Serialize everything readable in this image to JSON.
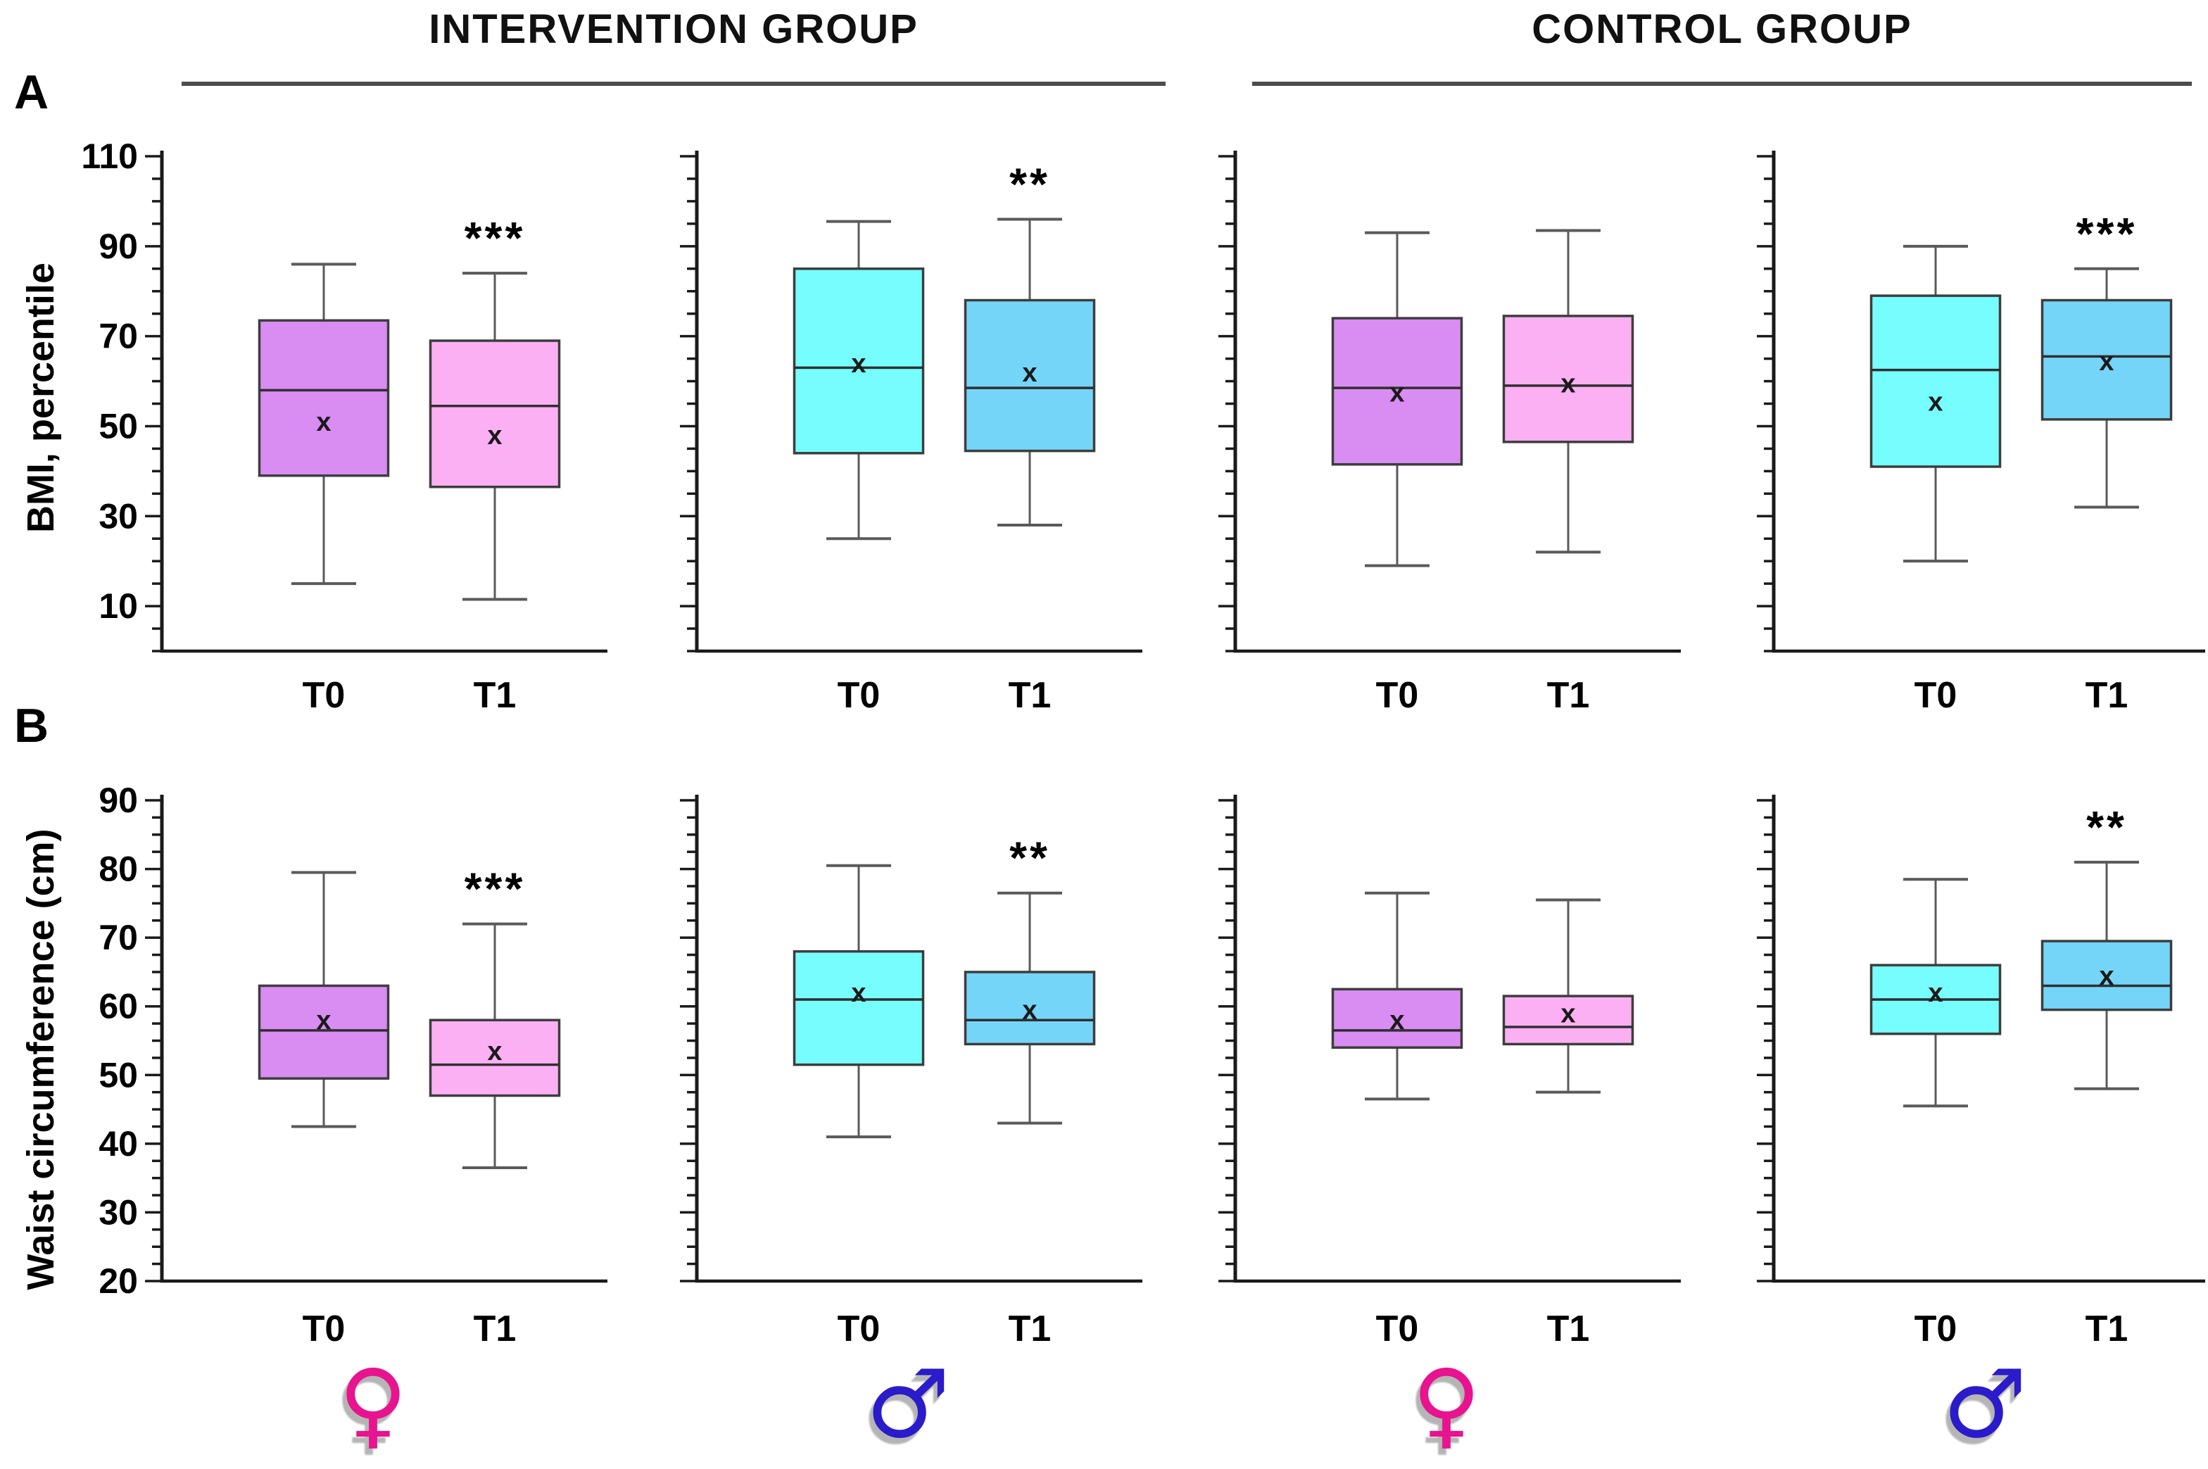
{
  "page": {
    "headers": {
      "intervention": "INTERVENTION GROUP",
      "control": "CONTROL  GROUP"
    },
    "panels": {
      "a_label": "A",
      "b_label": "B"
    },
    "y_axis_labels": {
      "row_a": "BMI, percentile",
      "row_b": "Waist circumference (cm)"
    },
    "x_categories": [
      "T0",
      "T1"
    ],
    "sex_symbols": [
      {
        "name": "female-symbol",
        "glyph": "♀",
        "color": "#e8138e"
      },
      {
        "name": "male-symbol",
        "glyph": "♂",
        "color": "#2a1bcb"
      },
      {
        "name": "female-symbol",
        "glyph": "♀",
        "color": "#e8138e"
      },
      {
        "name": "male-symbol",
        "glyph": "♂",
        "color": "#2a1bcb"
      }
    ]
  },
  "style": {
    "colors": {
      "female_t0_fill": "#d98cf2",
      "female_t1_fill": "#fbb0f4",
      "male_t0_fill": "#76fdfd",
      "male_t1_fill": "#74d5f8",
      "box_stroke": "#3d3d3d",
      "median_line": "#2f2f2f",
      "whisker": "#5a5a5a",
      "axis": "#1a1a1a",
      "text": "#000000"
    }
  },
  "chart_data": [
    {
      "id": "bmi-intervention-female",
      "type": "boxplot",
      "panel": "A",
      "group": "INTERVENTION GROUP",
      "sex": "female",
      "ylabel": "BMI, percentile",
      "ylim": [
        0,
        110
      ],
      "ytick_values": [
        10,
        30,
        50,
        70,
        90,
        110
      ],
      "minor_tick_step": 5,
      "show_ytick_labels": true,
      "categories": [
        "T0",
        "T1"
      ],
      "boxes": [
        {
          "label": "T0",
          "min": 15,
          "q1": 39,
          "median": 58,
          "mean": 51,
          "q3": 73.5,
          "max": 86,
          "fill": "#d98cf2",
          "significance": ""
        },
        {
          "label": "T1",
          "min": 11.5,
          "q1": 36.5,
          "median": 54.5,
          "mean": 48,
          "q3": 69,
          "max": 84,
          "fill": "#fbb0f4",
          "significance": "***"
        }
      ]
    },
    {
      "id": "bmi-intervention-male",
      "type": "boxplot",
      "panel": "A",
      "group": "INTERVENTION GROUP",
      "sex": "male",
      "ylabel": "BMI, percentile",
      "ylim": [
        0,
        110
      ],
      "ytick_values": [
        10,
        30,
        50,
        70,
        90,
        110
      ],
      "minor_tick_step": 5,
      "show_ytick_labels": false,
      "categories": [
        "T0",
        "T1"
      ],
      "boxes": [
        {
          "label": "T0",
          "min": 25,
          "q1": 44,
          "median": 63,
          "mean": 64,
          "q3": 85,
          "max": 95.5,
          "fill": "#76fdfd",
          "significance": ""
        },
        {
          "label": "T1",
          "min": 28,
          "q1": 44.5,
          "median": 58.5,
          "mean": 62,
          "q3": 78,
          "max": 96,
          "fill": "#74d5f8",
          "significance": "**"
        }
      ]
    },
    {
      "id": "bmi-control-female",
      "type": "boxplot",
      "panel": "A",
      "group": "CONTROL GROUP",
      "sex": "female",
      "ylabel": "BMI, percentile",
      "ylim": [
        0,
        110
      ],
      "ytick_values": [
        10,
        30,
        50,
        70,
        90,
        110
      ],
      "minor_tick_step": 5,
      "show_ytick_labels": false,
      "categories": [
        "T0",
        "T1"
      ],
      "boxes": [
        {
          "label": "T0",
          "min": 19,
          "q1": 41.5,
          "median": 58.5,
          "mean": 57.5,
          "q3": 74,
          "max": 93,
          "fill": "#d98cf2",
          "significance": ""
        },
        {
          "label": "T1",
          "min": 22,
          "q1": 46.5,
          "median": 59,
          "mean": 59.5,
          "q3": 74.5,
          "max": 93.5,
          "fill": "#fbb0f4",
          "significance": ""
        }
      ]
    },
    {
      "id": "bmi-control-male",
      "type": "boxplot",
      "panel": "A",
      "group": "CONTROL GROUP",
      "sex": "male",
      "ylabel": "BMI, percentile",
      "ylim": [
        0,
        110
      ],
      "ytick_values": [
        10,
        30,
        50,
        70,
        90,
        110
      ],
      "minor_tick_step": 5,
      "show_ytick_labels": false,
      "categories": [
        "T0",
        "T1"
      ],
      "boxes": [
        {
          "label": "T0",
          "min": 20,
          "q1": 41,
          "median": 62.5,
          "mean": 55.5,
          "q3": 79,
          "max": 90,
          "fill": "#76fdfd",
          "significance": ""
        },
        {
          "label": "T1",
          "min": 32,
          "q1": 51.5,
          "median": 65.5,
          "mean": 64.5,
          "q3": 78,
          "max": 85,
          "fill": "#74d5f8",
          "significance": "***"
        }
      ]
    },
    {
      "id": "waist-intervention-female",
      "type": "boxplot",
      "panel": "B",
      "group": "INTERVENTION GROUP",
      "sex": "female",
      "ylabel": "Waist circumference (cm)",
      "ylim": [
        20,
        90
      ],
      "ytick_values": [
        20,
        30,
        40,
        50,
        60,
        70,
        80,
        90
      ],
      "minor_tick_step": 2.5,
      "show_ytick_labels": true,
      "categories": [
        "T0",
        "T1"
      ],
      "boxes": [
        {
          "label": "T0",
          "min": 42.5,
          "q1": 49.5,
          "median": 56.5,
          "mean": 58,
          "q3": 63,
          "max": 79.5,
          "fill": "#d98cf2",
          "significance": ""
        },
        {
          "label": "T1",
          "min": 36.5,
          "q1": 47,
          "median": 51.5,
          "mean": 53.5,
          "q3": 58,
          "max": 72,
          "fill": "#fbb0f4",
          "significance": "***"
        }
      ]
    },
    {
      "id": "waist-intervention-male",
      "type": "boxplot",
      "panel": "B",
      "group": "INTERVENTION GROUP",
      "sex": "male",
      "ylabel": "Waist circumference (cm)",
      "ylim": [
        20,
        90
      ],
      "ytick_values": [
        20,
        30,
        40,
        50,
        60,
        70,
        80,
        90
      ],
      "minor_tick_step": 2.5,
      "show_ytick_labels": false,
      "categories": [
        "T0",
        "T1"
      ],
      "boxes": [
        {
          "label": "T0",
          "min": 41,
          "q1": 51.5,
          "median": 61,
          "mean": 62,
          "q3": 68,
          "max": 80.5,
          "fill": "#76fdfd",
          "significance": ""
        },
        {
          "label": "T1",
          "min": 43,
          "q1": 54.5,
          "median": 58,
          "mean": 59.5,
          "q3": 65,
          "max": 76.5,
          "fill": "#74d5f8",
          "significance": "**"
        }
      ]
    },
    {
      "id": "waist-control-female",
      "type": "boxplot",
      "panel": "B",
      "group": "CONTROL GROUP",
      "sex": "female",
      "ylabel": "Waist circumference (cm)",
      "ylim": [
        20,
        90
      ],
      "ytick_values": [
        20,
        30,
        40,
        50,
        60,
        70,
        80,
        90
      ],
      "minor_tick_step": 2.5,
      "show_ytick_labels": false,
      "categories": [
        "T0",
        "T1"
      ],
      "boxes": [
        {
          "label": "T0",
          "min": 46.5,
          "q1": 54,
          "median": 56.5,
          "mean": 58,
          "q3": 62.5,
          "max": 76.5,
          "fill": "#d98cf2",
          "significance": ""
        },
        {
          "label": "T1",
          "min": 47.5,
          "q1": 54.5,
          "median": 57,
          "mean": 59,
          "q3": 61.5,
          "max": 75.5,
          "fill": "#fbb0f4",
          "significance": ""
        }
      ]
    },
    {
      "id": "waist-control-male",
      "type": "boxplot",
      "panel": "B",
      "group": "CONTROL GROUP",
      "sex": "male",
      "ylabel": "Waist circumference (cm)",
      "ylim": [
        20,
        90
      ],
      "ytick_values": [
        20,
        30,
        40,
        50,
        60,
        70,
        80,
        90
      ],
      "minor_tick_step": 2.5,
      "show_ytick_labels": false,
      "categories": [
        "T0",
        "T1"
      ],
      "boxes": [
        {
          "label": "T0",
          "min": 45.5,
          "q1": 56,
          "median": 61,
          "mean": 62,
          "q3": 66,
          "max": 78.5,
          "fill": "#76fdfd",
          "significance": ""
        },
        {
          "label": "T1",
          "min": 48,
          "q1": 59.5,
          "median": 63,
          "mean": 64.5,
          "q3": 69.5,
          "max": 81,
          "fill": "#74d5f8",
          "significance": "**"
        }
      ]
    }
  ]
}
